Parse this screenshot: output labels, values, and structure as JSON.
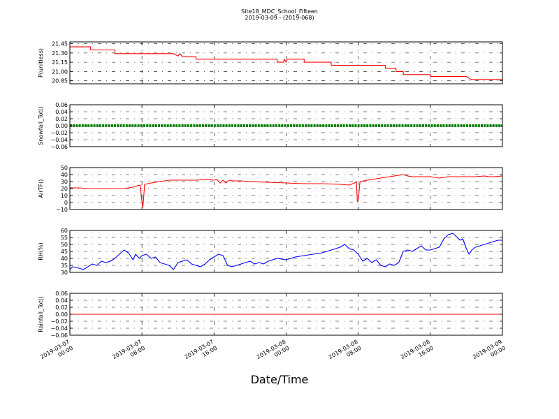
{
  "chart_data": {
    "type": "line",
    "title": "Site18_MDC_School_Fifteen",
    "subtitle": "2019-03-09 - (2019-068)",
    "xlabel": "Date/Time",
    "x_range": [
      "2019-03-07 00:00",
      "2019-03-09 00:00"
    ],
    "x_ticks": [
      {
        "t": 0,
        "label": [
          "2019-03-07",
          "00:00"
        ]
      },
      {
        "t": 8,
        "label": [
          "2019-03-07",
          "08:00"
        ]
      },
      {
        "t": 16,
        "label": [
          "2019-03-07",
          "16:00"
        ]
      },
      {
        "t": 24,
        "label": [
          "2019-03-08",
          "00:00"
        ]
      },
      {
        "t": 32,
        "label": [
          "2019-03-08",
          "08:00"
        ]
      },
      {
        "t": 40,
        "label": [
          "2019-03-08",
          "16:00"
        ]
      },
      {
        "t": 48,
        "label": [
          "2019-03-09",
          "00:00"
        ]
      }
    ],
    "grid": true,
    "panels": [
      {
        "ylabel": "P(unitless)",
        "ylim": [
          20.8,
          21.48
        ],
        "yticks": [
          20.85,
          21.0,
          21.15,
          21.3,
          21.45
        ],
        "ytick_labels": [
          "20.85",
          "21.00",
          "21.15",
          "21.30",
          "21.45"
        ],
        "color": "#ff0000",
        "marker": false,
        "series": [
          {
            "x": [
              0,
              2.3,
              2.3,
              5.0,
              5.0,
              11.5,
              12.0,
              12.2,
              12.5,
              12.7,
              14.0,
              14.0,
              18.0,
              23.0,
              23.0,
              23.7,
              23.8,
              24.0,
              24.1,
              24.2,
              26.0,
              26.0,
              29.0,
              29.0,
              35.0,
              35.0,
              36.2,
              36.2,
              37.0,
              37.0,
              40.0,
              40.0,
              44.0,
              44.5,
              44.5,
              48.0
            ],
            "y": [
              21.4,
              21.4,
              21.35,
              21.35,
              21.29,
              21.29,
              21.25,
              21.29,
              21.24,
              21.24,
              21.24,
              21.2,
              21.2,
              21.2,
              21.15,
              21.15,
              21.2,
              21.15,
              21.19,
              21.2,
              21.2,
              21.15,
              21.15,
              21.1,
              21.1,
              21.05,
              21.05,
              21.0,
              21.0,
              20.95,
              20.95,
              20.92,
              20.92,
              20.87,
              20.87,
              20.87
            ]
          }
        ]
      },
      {
        "ylabel": "Snowfall_Tot()",
        "ylim": [
          -0.06,
          0.06
        ],
        "yticks": [
          -0.06,
          -0.04,
          -0.02,
          0.0,
          0.02,
          0.04,
          0.06
        ],
        "ytick_labels": [
          "−0.06",
          "−0.04",
          "−0.02",
          "0.00",
          "0.02",
          "0.04",
          "0.06"
        ],
        "color": "#008000",
        "marker": true,
        "series": [
          {
            "x": [
              0,
              48
            ],
            "y": [
              0,
              0
            ]
          }
        ]
      },
      {
        "ylabel": "AirTF()",
        "ylim": [
          -10,
          50
        ],
        "yticks": [
          -10,
          0,
          10,
          20,
          30,
          40,
          50
        ],
        "ytick_labels": [
          "−10",
          "0",
          "10",
          "20",
          "30",
          "40",
          "50"
        ],
        "color": "#ff0000",
        "marker": false,
        "series": [
          {
            "x": [
              0,
              1,
              2,
              3,
              4,
              5,
              6,
              7,
              7.5,
              7.8,
              8.0,
              8.1,
              8.3,
              9,
              10,
              10.5,
              11,
              12,
              13,
              14,
              15,
              16,
              16.3,
              16.7,
              17,
              17.3,
              17.7,
              18,
              19,
              20,
              22,
              24,
              26,
              28,
              30,
              31,
              31.6,
              31.8,
              31.9,
              32.0,
              32.2,
              33,
              34,
              35,
              36,
              37,
              37.5,
              38,
              39,
              40,
              41,
              42,
              43,
              44,
              45,
              46,
              46.5,
              47,
              48
            ],
            "y": [
              21,
              21,
              20,
              20,
              20,
              20,
              20,
              22,
              24,
              25,
              1,
              -7,
              26,
              28,
              30,
              31,
              32,
              32,
              32,
              32,
              33,
              32,
              33,
              28,
              32,
              28,
              32,
              31,
              31,
              30,
              29,
              28,
              27,
              27,
              26,
              25,
              28,
              30,
              1,
              3,
              30,
              32,
              34,
              36,
              38,
              40,
              38,
              37,
              37,
              37,
              35,
              37,
              37,
              37,
              37,
              38,
              37,
              37,
              38
            ]
          }
        ]
      },
      {
        "ylabel": "RH(%)",
        "ylim": [
          30,
          60
        ],
        "yticks": [
          30,
          35,
          40,
          45,
          50,
          55,
          60
        ],
        "ytick_labels": [
          "30",
          "35",
          "40",
          "45",
          "50",
          "55",
          "60"
        ],
        "color": "#0000ff",
        "marker": false,
        "series": [
          {
            "x": [
              0,
              0.3,
              1,
              1.5,
              2,
              2.5,
              3,
              3.5,
              4,
              4.5,
              5,
              5.5,
              6,
              6.5,
              7,
              7.3,
              7.7,
              8,
              8.5,
              9,
              9.5,
              10,
              10.5,
              11,
              11.5,
              12,
              12.5,
              13,
              13.5,
              14,
              14.5,
              15,
              15.5,
              16,
              16.5,
              17,
              17.5,
              18,
              18.5,
              19,
              19.5,
              20,
              20.5,
              21,
              21.5,
              22,
              23,
              24,
              25,
              26,
              27,
              28,
              29,
              30,
              30.5,
              31,
              31.5,
              32,
              32.5,
              33,
              33.5,
              34,
              34.5,
              35,
              35.5,
              36,
              36.5,
              37,
              37.5,
              38,
              38.5,
              39,
              39.5,
              40,
              40.5,
              41,
              41.5,
              42,
              42.5,
              43,
              43.3,
              43.6,
              44,
              44.3,
              44.6,
              45,
              45.5,
              46,
              46.5,
              47,
              47.5,
              48
            ],
            "y": [
              32,
              34,
              33,
              32,
              34,
              36,
              35,
              38,
              37,
              38,
              40,
              43,
              46,
              44,
              39,
              43,
              40,
              42,
              43,
              40,
              41,
              37,
              36,
              35,
              32,
              37,
              38,
              39,
              36,
              35,
              34,
              36,
              39,
              41,
              43,
              42,
              35,
              34,
              35,
              36,
              37,
              38,
              36,
              37,
              36,
              38,
              40,
              39,
              41,
              42,
              43,
              44,
              46,
              48,
              50,
              47,
              46,
              43,
              38,
              40,
              37,
              39,
              35,
              34,
              36,
              35,
              37,
              45,
              46,
              45,
              47,
              49,
              46,
              46,
              47,
              48,
              54,
              57,
              58,
              55,
              53,
              54,
              47,
              43,
              46,
              48,
              49,
              50,
              51,
              52,
              53,
              53
            ]
          }
        ]
      },
      {
        "ylabel": "Rainfall_Tot()",
        "ylim": [
          -0.06,
          0.06
        ],
        "yticks": [
          -0.06,
          -0.04,
          -0.02,
          0.0,
          0.02,
          0.04,
          0.06
        ],
        "ytick_labels": [
          "−0.06",
          "−0.04",
          "−0.02",
          "0.00",
          "0.02",
          "0.04",
          "0.06"
        ],
        "color": "#ff0000",
        "marker": false,
        "series": [
          {
            "x": [
              0,
              48
            ],
            "y": [
              0,
              0
            ]
          }
        ]
      }
    ]
  }
}
